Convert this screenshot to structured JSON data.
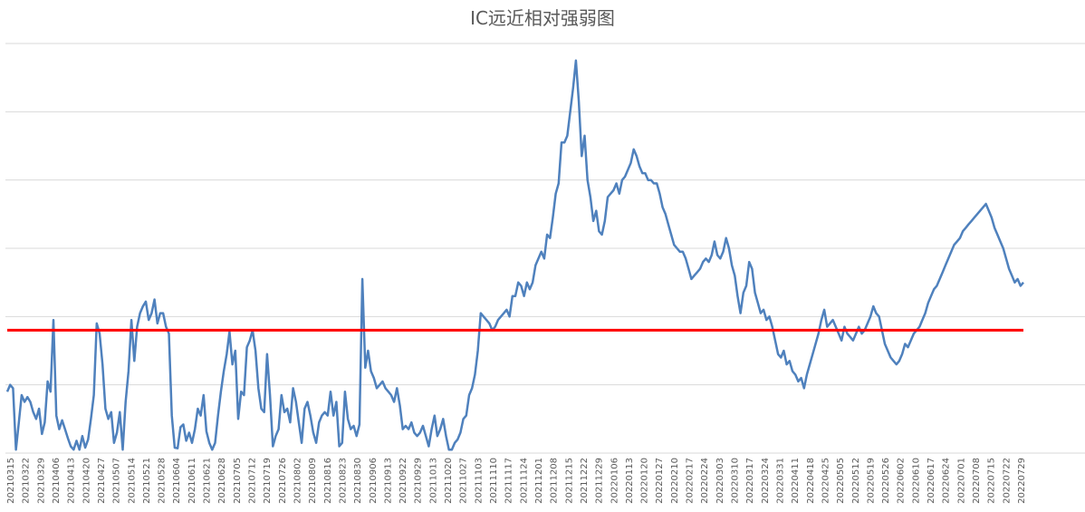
{
  "chart_data": {
    "type": "line",
    "title": "IC远近相对强弱图",
    "xlabel": "",
    "ylabel": "",
    "ylim": [
      0,
      6
    ],
    "y_ticks": [
      0,
      1,
      2,
      3,
      4,
      5,
      6
    ],
    "y_tick_labels_shown": false,
    "grid": "horizontal",
    "legend": "none",
    "x_tick_labels": [
      "20210315",
      "20210322",
      "20210329",
      "20210406",
      "20210413",
      "20210420",
      "20210427",
      "20210507",
      "20210514",
      "20210521",
      "20210528",
      "20210604",
      "20210611",
      "20210621",
      "20210628",
      "20210705",
      "20210712",
      "20210719",
      "20210726",
      "20210802",
      "20210809",
      "20210816",
      "20210823",
      "20210830",
      "20210906",
      "20210913",
      "20210922",
      "20210929",
      "20211013",
      "20211020",
      "20211027",
      "20211103",
      "20211110",
      "20211117",
      "20211124",
      "20211201",
      "20211208",
      "20211215",
      "20211222",
      "20211229",
      "20220106",
      "20220113",
      "20220120",
      "20220127",
      "20220210",
      "20220217",
      "20220224",
      "20220303",
      "20220310",
      "20220317",
      "20220324",
      "20220331",
      "20220411",
      "20220418",
      "20220425",
      "20220505",
      "20220512",
      "20220519",
      "20220526",
      "20220602",
      "20220610",
      "20220617",
      "20220624",
      "20220701",
      "20220708",
      "20220715",
      "20220722",
      "20220729"
    ],
    "series": [
      {
        "color": "#4f81bd",
        "values": [
          0.9,
          1.0,
          0.95,
          0.05,
          0.45,
          0.85,
          0.75,
          0.82,
          0.75,
          0.6,
          0.5,
          0.65,
          0.28,
          0.45,
          1.05,
          0.9,
          1.95,
          0.55,
          0.35,
          0.48,
          0.35,
          0.22,
          0.1,
          0.05,
          0.18,
          0.05,
          0.25,
          0.08,
          0.2,
          0.5,
          0.85,
          1.9,
          1.75,
          1.3,
          0.65,
          0.5,
          0.6,
          0.15,
          0.3,
          0.6,
          0.05,
          0.75,
          1.2,
          1.95,
          1.35,
          1.85,
          2.05,
          2.15,
          2.22,
          1.95,
          2.05,
          2.25,
          1.9,
          2.05,
          2.05,
          1.85,
          1.75,
          0.55,
          0.08,
          0.07,
          0.38,
          0.42,
          0.18,
          0.3,
          0.15,
          0.35,
          0.65,
          0.55,
          0.85,
          0.32,
          0.15,
          0.05,
          0.15,
          0.55,
          0.9,
          1.2,
          1.45,
          1.78,
          1.3,
          1.5,
          0.5,
          0.9,
          0.85,
          1.55,
          1.65,
          1.8,
          1.5,
          0.95,
          0.65,
          0.6,
          1.45,
          0.85,
          0.1,
          0.25,
          0.35,
          0.85,
          0.6,
          0.65,
          0.45,
          0.95,
          0.75,
          0.45,
          0.15,
          0.65,
          0.75,
          0.55,
          0.3,
          0.15,
          0.45,
          0.55,
          0.6,
          0.55,
          0.9,
          0.55,
          0.75,
          0.1,
          0.15,
          0.9,
          0.5,
          0.35,
          0.4,
          0.25,
          0.42,
          2.55,
          1.25,
          1.5,
          1.2,
          1.1,
          0.95,
          1.0,
          1.05,
          0.95,
          0.9,
          0.85,
          0.75,
          0.95,
          0.7,
          0.35,
          0.4,
          0.35,
          0.45,
          0.3,
          0.25,
          0.3,
          0.4,
          0.25,
          0.1,
          0.35,
          0.55,
          0.25,
          0.35,
          0.5,
          0.25,
          0.05,
          0.05,
          0.15,
          0.2,
          0.3,
          0.5,
          0.55,
          0.85,
          0.95,
          1.15,
          1.5,
          2.05,
          2.0,
          1.95,
          1.9,
          1.8,
          1.85,
          1.95,
          2.0,
          2.05,
          2.1,
          2.0,
          2.3,
          2.3,
          2.5,
          2.45,
          2.3,
          2.5,
          2.4,
          2.5,
          2.75,
          2.85,
          2.95,
          2.85,
          3.2,
          3.15,
          3.45,
          3.8,
          3.95,
          4.55,
          4.55,
          4.65,
          5.0,
          5.35,
          5.75,
          5.15,
          4.35,
          4.65,
          4.0,
          3.75,
          3.4,
          3.55,
          3.25,
          3.2,
          3.4,
          3.75,
          3.8,
          3.85,
          3.95,
          3.8,
          4.0,
          4.05,
          4.15,
          4.25,
          4.45,
          4.35,
          4.2,
          4.1,
          4.1,
          4.0,
          4.0,
          3.95,
          3.95,
          3.8,
          3.6,
          3.5,
          3.35,
          3.2,
          3.05,
          3.0,
          2.95,
          2.95,
          2.85,
          2.7,
          2.55,
          2.6,
          2.65,
          2.7,
          2.8,
          2.85,
          2.8,
          2.9,
          3.1,
          2.9,
          2.85,
          2.95,
          3.15,
          3.0,
          2.75,
          2.6,
          2.3,
          2.05,
          2.35,
          2.45,
          2.8,
          2.7,
          2.35,
          2.2,
          2.05,
          2.1,
          1.95,
          2.0,
          1.85,
          1.65,
          1.45,
          1.4,
          1.5,
          1.3,
          1.35,
          1.2,
          1.15,
          1.05,
          1.1,
          0.95,
          1.15,
          1.3,
          1.45,
          1.6,
          1.75,
          1.95,
          2.1,
          1.85,
          1.9,
          1.95,
          1.85,
          1.75,
          1.65,
          1.85,
          1.75,
          1.7,
          1.65,
          1.75,
          1.85,
          1.75,
          1.8,
          1.9,
          2.0,
          2.15,
          2.05,
          2.0,
          1.8,
          1.6,
          1.5,
          1.4,
          1.35,
          1.3,
          1.35,
          1.45,
          1.6,
          1.55,
          1.65,
          1.75,
          1.8,
          1.85,
          1.95,
          2.05,
          2.2,
          2.3,
          2.4,
          2.45,
          2.55,
          2.65,
          2.75,
          2.85,
          2.95,
          3.05,
          3.1,
          3.15,
          3.25,
          3.3,
          3.35,
          3.4,
          3.45,
          3.5,
          3.55,
          3.6,
          3.65,
          3.55,
          3.45,
          3.3,
          3.2,
          3.1,
          3.0,
          2.85,
          2.7,
          2.6,
          2.5,
          2.55,
          2.45,
          2.5
        ]
      }
    ],
    "reference_line": {
      "value": 1.8,
      "color": "#ff0000"
    }
  }
}
